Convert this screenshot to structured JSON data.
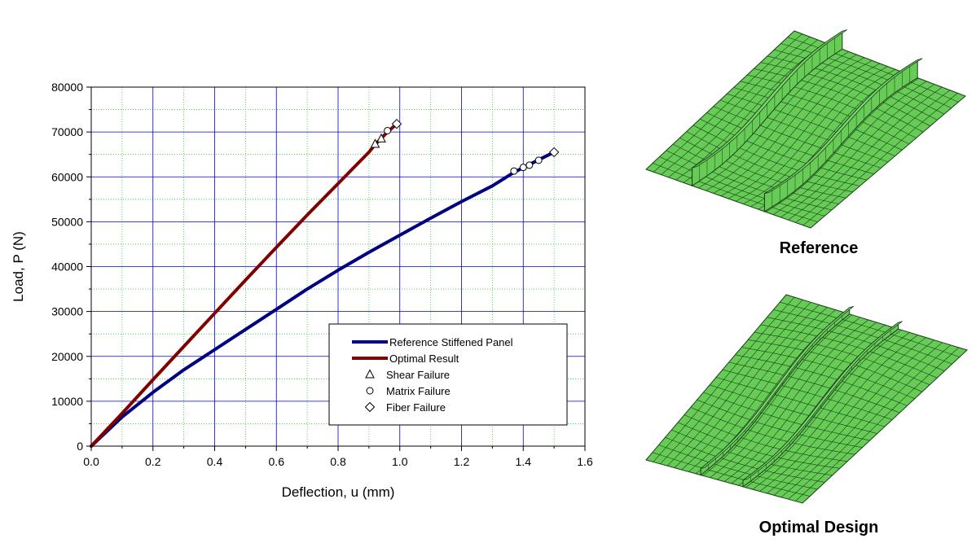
{
  "chart_data": {
    "type": "line",
    "title": "",
    "xlabel": "Deflection, u (mm)",
    "ylabel": "Load, P (N)",
    "xlim": [
      0.0,
      1.6
    ],
    "ylim": [
      0,
      80000
    ],
    "xticks": [
      0.0,
      0.2,
      0.4,
      0.6,
      0.8,
      1.0,
      1.2,
      1.4,
      1.6
    ],
    "yticks": [
      0,
      10000,
      20000,
      30000,
      40000,
      50000,
      60000,
      70000,
      80000
    ],
    "xtick_labels": [
      "0.0",
      "0.2",
      "0.4",
      "0.6",
      "0.8",
      "1.0",
      "1.2",
      "1.4",
      "1.6"
    ],
    "ytick_labels": [
      "0",
      "10000",
      "20000",
      "30000",
      "40000",
      "50000",
      "60000",
      "70000",
      "80000"
    ],
    "grid": true,
    "legend_position": "bottom-right",
    "series": [
      {
        "name": "Reference Stiffened Panel",
        "color": "#000080",
        "x": [
          0.0,
          0.1,
          0.2,
          0.3,
          0.4,
          0.5,
          0.6,
          0.7,
          0.8,
          0.9,
          1.0,
          1.1,
          1.2,
          1.3,
          1.37,
          1.45,
          1.5
        ],
        "y": [
          0,
          6500,
          12000,
          17000,
          21500,
          26000,
          30500,
          35000,
          39200,
          43200,
          47000,
          50800,
          54500,
          58000,
          61000,
          63800,
          65500
        ]
      },
      {
        "name": "Optimal Result",
        "color": "#800000",
        "x": [
          0.0,
          0.1,
          0.2,
          0.3,
          0.4,
          0.5,
          0.6,
          0.7,
          0.8,
          0.9,
          0.92,
          0.96,
          0.99
        ],
        "y": [
          0,
          7300,
          14800,
          22200,
          29600,
          37000,
          44300,
          51500,
          58500,
          65500,
          67200,
          70000,
          71800
        ]
      }
    ],
    "failure_markers": [
      {
        "name": "Shear Failure",
        "symbol": "triangle",
        "points": [
          [
            0.92,
            67300
          ],
          [
            0.94,
            68500
          ]
        ]
      },
      {
        "name": "Matrix Failure",
        "symbol": "circle",
        "points": [
          [
            0.96,
            70300
          ],
          [
            1.37,
            61300
          ],
          [
            1.4,
            62100
          ],
          [
            1.42,
            62600
          ],
          [
            1.45,
            63700
          ]
        ]
      },
      {
        "name": "Fiber Failure",
        "symbol": "diamond",
        "points": [
          [
            0.99,
            71800
          ],
          [
            1.5,
            65500
          ]
        ]
      }
    ],
    "legend": [
      {
        "label": "Reference Stiffened Panel",
        "kind": "line",
        "color": "#000080"
      },
      {
        "label": "Optimal Result",
        "kind": "line",
        "color": "#800000"
      },
      {
        "label": "Shear Failure",
        "kind": "triangle"
      },
      {
        "label": "Matrix Failure",
        "kind": "circle"
      },
      {
        "label": "Fiber Failure",
        "kind": "diamond"
      }
    ]
  },
  "panels": {
    "reference_caption": "Reference",
    "optimal_caption": "Optimal Design",
    "mesh_color": "#66cc55"
  }
}
